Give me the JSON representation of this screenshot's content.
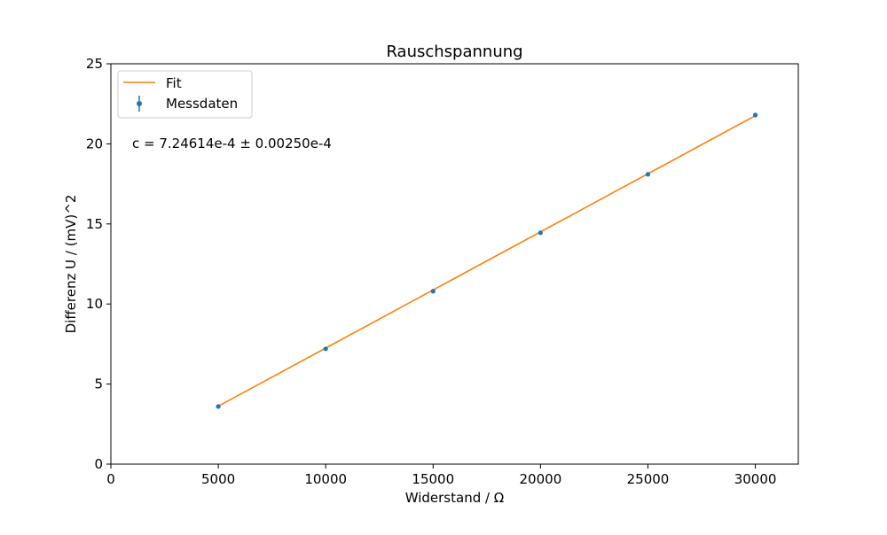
{
  "chart_data": {
    "type": "scatter",
    "title": "Rauschspannung",
    "xlabel": "Widerstand / Ω",
    "ylabel": "Differenz U / (mV)^2",
    "xlim": [
      0,
      32000
    ],
    "ylim": [
      0,
      25
    ],
    "x_ticks": [
      0,
      5000,
      10000,
      15000,
      20000,
      25000,
      30000
    ],
    "y_ticks": [
      0,
      5,
      10,
      15,
      20,
      25
    ],
    "grid": false,
    "legend_position": "top-left",
    "annotation": "c = 7.24614e-4 ± 0.00250e-4",
    "series": [
      {
        "name": "Fit",
        "kind": "line",
        "color": "#ff7f0e",
        "x": [
          5000,
          30000
        ],
        "y": [
          3.62,
          21.76
        ]
      },
      {
        "name": "Messdaten",
        "kind": "errorbar-points",
        "color": "#1f77b4",
        "x": [
          5000,
          10000,
          15000,
          20000,
          25000,
          30000
        ],
        "y": [
          3.6,
          7.2,
          10.8,
          14.45,
          18.1,
          21.8
        ]
      }
    ]
  }
}
